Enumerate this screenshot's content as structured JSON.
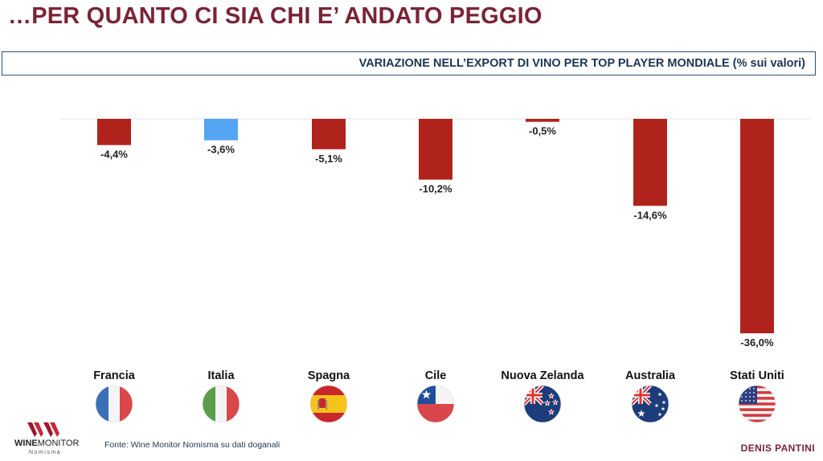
{
  "header": {
    "title": "…PER QUANTO CI SIA CHI E’ ANDATO PEGGIO",
    "subtitle": "VARIAZIONE NELL’EXPORT DI VINO PER TOP PLAYER MONDIALE (% sui valori)"
  },
  "chart_data": {
    "type": "bar",
    "categories": [
      "Francia",
      "Italia",
      "Spagna",
      "Cile",
      "Nuova Zelanda",
      "Australia",
      "Stati Uniti"
    ],
    "values": [
      -4.4,
      -3.6,
      -5.1,
      -10.2,
      -0.5,
      -14.6,
      -36.0
    ],
    "data_labels": [
      "-4,4%",
      "-3,6%",
      "-5,1%",
      "-10,2%",
      "-0,5%",
      "-14,6%",
      "-36,0%"
    ],
    "bar_colors": [
      "#b0231c",
      "#55a5f5",
      "#b0231c",
      "#b0231c",
      "#b0231c",
      "#b0231c",
      "#b0231c"
    ],
    "flags": [
      "france-flag-icon",
      "italy-flag-icon",
      "spain-flag-icon",
      "chile-flag-icon",
      "new-zealand-flag-icon",
      "australia-flag-icon",
      "usa-flag-icon"
    ],
    "ylim": [
      -36.0,
      0
    ],
    "grid": false,
    "title": "",
    "xlabel": "",
    "ylabel": ""
  },
  "footer": {
    "logo_word_bold": "WINE",
    "logo_word_light": "MONITOR",
    "logo_sub": "Nomisma",
    "source": "Fonte: Wine Monitor Nomisma su dati doganali",
    "author": "DENIS PANTINI"
  },
  "colors": {
    "accent": "#7a2436",
    "navy": "#1f3552",
    "bar_red": "#b0231c",
    "bar_blue": "#55a5f5"
  }
}
